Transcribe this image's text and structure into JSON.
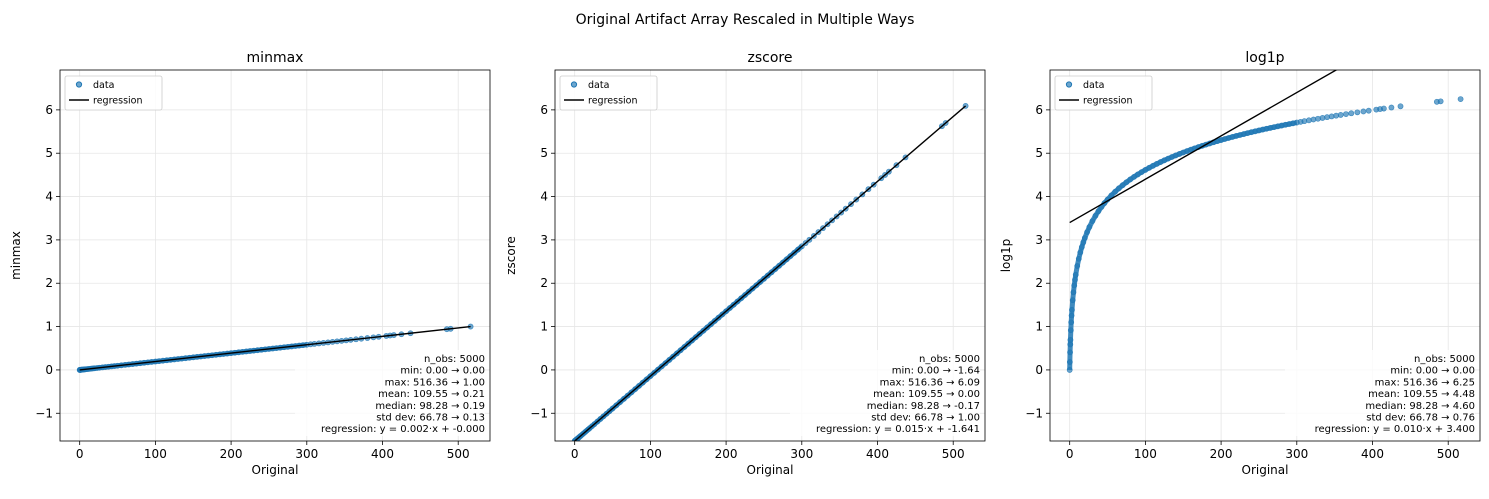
{
  "figure_title": "Original Artifact Array Rescaled in Multiple Ways",
  "colors": {
    "points": "#1f77b4",
    "regression": "#000000",
    "grid": "#e6e6e6"
  },
  "legend": {
    "data_label": "data",
    "regression_label": "regression",
    "placement": "upper-left"
  },
  "chart_data": [
    {
      "type": "scatter",
      "title": "minmax",
      "xlabel": "Original",
      "ylabel": "minmax",
      "transform": "minmax",
      "grid": true,
      "xlim": [
        -26,
        542
      ],
      "ylim": [
        -1.64,
        6.92
      ],
      "xticks": [
        0,
        100,
        200,
        300,
        400,
        500
      ],
      "yticks": [
        -1,
        0,
        1,
        2,
        3,
        4,
        5,
        6
      ],
      "regression": {
        "slope": 0.001937,
        "intercept": 0.0
      },
      "stats": [
        "n_obs: 5000",
        "min: 0.00 → 0.00",
        "max: 516.36 → 1.00",
        "mean: 109.55 → 0.21",
        "median: 98.28 → 0.19",
        "std dev: 66.78 → 0.13",
        "regression: y = 0.002·x + -0.000"
      ]
    },
    {
      "type": "scatter",
      "title": "zscore",
      "xlabel": "Original",
      "ylabel": "zscore",
      "transform": "zscore",
      "grid": true,
      "xlim": [
        -26,
        542
      ],
      "ylim": [
        -1.64,
        6.92
      ],
      "xticks": [
        0,
        100,
        200,
        300,
        400,
        500
      ],
      "yticks": [
        -1,
        0,
        1,
        2,
        3,
        4,
        5,
        6
      ],
      "regression": {
        "slope": 0.014975,
        "intercept": -1.641
      },
      "stats": [
        "n_obs: 5000",
        "min: 0.00 → -1.64",
        "max: 516.36 → 6.09",
        "mean: 109.55 → 0.00",
        "median: 98.28 → -0.17",
        "std dev: 66.78 → 1.00",
        "regression: y = 0.015·x + -1.641"
      ]
    },
    {
      "type": "scatter",
      "title": "log1p",
      "xlabel": "Original",
      "ylabel": "log1p",
      "transform": "log1p",
      "grid": true,
      "xlim": [
        -26,
        542
      ],
      "ylim": [
        -1.64,
        6.92
      ],
      "xticks": [
        0,
        100,
        200,
        300,
        400,
        500
      ],
      "yticks": [
        -1,
        0,
        1,
        2,
        3,
        4,
        5,
        6
      ],
      "regression": {
        "slope": 0.01,
        "intercept": 3.4
      },
      "stats": [
        "n_obs: 5000",
        "min: 0.00 → 0.00",
        "max: 516.36 → 6.25",
        "mean: 109.55 → 4.48",
        "median: 98.28 → 4.60",
        "std dev: 66.78 → 0.76",
        "regression: y = 0.010·x + 3.400"
      ]
    }
  ],
  "x_sample": [
    0,
    0.2,
    0.5,
    0.8,
    1,
    1.5,
    2,
    2.5,
    3,
    4,
    5,
    6,
    7,
    8,
    10,
    12,
    14,
    16,
    18,
    20,
    23,
    26,
    30,
    34,
    38,
    42,
    46,
    50,
    55,
    60,
    65,
    70,
    75,
    80,
    85,
    90,
    95,
    100,
    105,
    110,
    115,
    120,
    125,
    130,
    135,
    140,
    145,
    150,
    155,
    160,
    165,
    170,
    175,
    180,
    185,
    190,
    195,
    200,
    205,
    210,
    215,
    220,
    225,
    230,
    235,
    240,
    245,
    250,
    255,
    260,
    265,
    270,
    275,
    280,
    285,
    290,
    295,
    300,
    305,
    310,
    316,
    322,
    328,
    334,
    340,
    346,
    352,
    358,
    365,
    372,
    380,
    388,
    395,
    405,
    410,
    415,
    425,
    437,
    485,
    490,
    516.36
  ],
  "sample_stats": {
    "mean": 109.55,
    "std": 66.78,
    "min": 0,
    "max": 516.36
  }
}
